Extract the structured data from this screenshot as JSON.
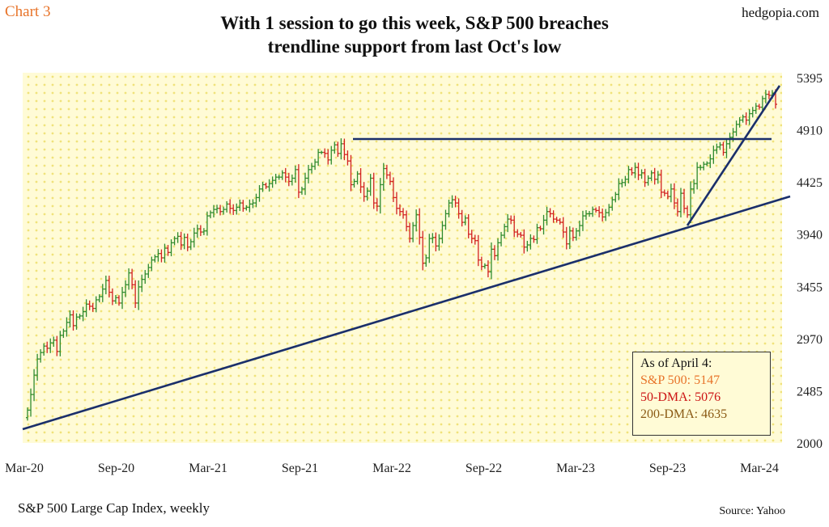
{
  "header": {
    "chart_number": "Chart 3",
    "brand": "hedgopia.com",
    "title_line1": "With 1 session to go this week, S&P 500 breaches",
    "title_line2": "trendline support from last Oct's low"
  },
  "footer": {
    "subtitle": "S&P 500 Large Cap Index, weekly",
    "source": "Source: Yahoo"
  },
  "legend": {
    "heading": "As of April 4:",
    "entries": [
      {
        "text": "S&P 500: 5147",
        "color": "#e8742a"
      },
      {
        "text": "50-DMA: 5076",
        "color": "#cc1414"
      },
      {
        "text": "200-DMA: 4635",
        "color": "#8a5a14"
      }
    ]
  },
  "colors": {
    "up": "#2e8b2e",
    "down": "#d22020",
    "trend": "#1a2f6b",
    "background": "#fffbd6",
    "dots": "#f0e27a"
  },
  "chart_data": {
    "type": "bar",
    "style": "weekly OHLC bars",
    "x_ticks": [
      "Mar-20",
      "Sep-20",
      "Mar-21",
      "Sep-21",
      "Mar-22",
      "Sep-22",
      "Mar-23",
      "Sep-23",
      "Mar-24"
    ],
    "y_ticks": [
      2000,
      2485,
      2970,
      3455,
      3940,
      4425,
      4910,
      5395
    ],
    "ylim": [
      2000,
      5395
    ],
    "y_axis_position": "right",
    "grid": false,
    "legend_position": "bottom-right",
    "week_start": "2020-03-20",
    "closes": [
      2305,
      2450,
      2630,
      2780,
      2840,
      2900,
      2880,
      2930,
      2955,
      2850,
      3000,
      3040,
      3120,
      3190,
      3090,
      3170,
      3180,
      3220,
      3290,
      3270,
      3250,
      3330,
      3360,
      3430,
      3510,
      3400,
      3320,
      3350,
      3300,
      3400,
      3470,
      3580,
      3470,
      3300,
      3450,
      3520,
      3570,
      3630,
      3700,
      3730,
      3760,
      3720,
      3810,
      3770,
      3860,
      3900,
      3920,
      3840,
      3910,
      3820,
      3870,
      3950,
      3990,
      3960,
      3970,
      4110,
      4140,
      4170,
      4180,
      4150,
      4170,
      4220,
      4180,
      4160,
      4190,
      4230,
      4180,
      4190,
      4220,
      4230,
      4280,
      4360,
      4400,
      4380,
      4410,
      4440,
      4470,
      4470,
      4510,
      4470,
      4430,
      4460,
      4540,
      4330,
      4360,
      4460,
      4540,
      4570,
      4610,
      4700,
      4700,
      4690,
      4630,
      4720,
      4770,
      4690,
      4780,
      4680,
      4620,
      4400,
      4430,
      4500,
      4380,
      4290,
      4340,
      4460,
      4230,
      4200,
      4400,
      4550,
      4490,
      4430,
      4280,
      4180,
      4150,
      4120,
      4010,
      3900,
      4020,
      4120,
      3910,
      3670,
      3720,
      3900,
      3910,
      3830,
      3900,
      4020,
      4130,
      4230,
      4260,
      4230,
      4130,
      4050,
      4090,
      3940,
      3900,
      3880,
      3700,
      3640,
      3650,
      3590,
      3800,
      3740,
      3860,
      3930,
      4010,
      4080,
      4070,
      3960,
      3940,
      3930,
      3820,
      3840,
      3900,
      3890,
      4000,
      3990,
      4070,
      4150,
      4130,
      4080,
      4070,
      4050,
      3960,
      3850,
      3970,
      3910,
      3970,
      4020,
      4110,
      4130,
      4130,
      4170,
      4160,
      4140,
      4100,
      4140,
      4190,
      4260,
      4310,
      4410,
      4420,
      4450,
      4540,
      4510,
      4560,
      4490,
      4510,
      4420,
      4460,
      4510,
      4450,
      4490,
      4330,
      4320,
      4290,
      4360,
      4230,
      4150,
      4320,
      4180,
      4120,
      4360,
      4410,
      4560,
      4560,
      4590,
      4600,
      4640,
      4720,
      4750,
      4770,
      4700,
      4780,
      4840,
      4890,
      4960,
      5000,
      5030,
      5000,
      5060,
      5090,
      5130,
      5120,
      5200,
      5240,
      5230,
      5250,
      5147
    ]
  }
}
